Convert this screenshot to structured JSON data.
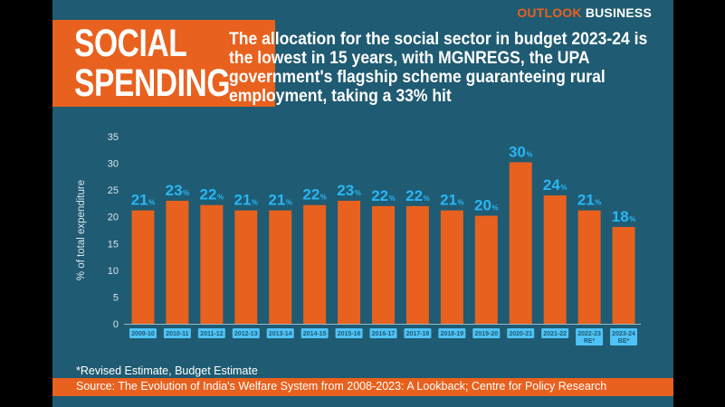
{
  "brand": {
    "first": "OUTLOOK",
    "second": "BUSINESS"
  },
  "title": {
    "line1": "SOCIAL",
    "line2": "SPENDING"
  },
  "headline": "The allocation for the social sector in budget 2023-24 is the lowest in 15 years, with MGNREGS, the UPA government's flagship scheme guaranteeing rural employment, taking a 33% hit",
  "footnote": "*Revised Estimate, Budget Estimate",
  "source": "Source: The Evolution of India's Welfare System from 2008-2023: A Lookback; Centre for Policy Research",
  "colors": {
    "bar": "#e8611e",
    "label": "#29b6f6",
    "background": "#1f5b72",
    "category_box": "#4fc3f7"
  },
  "chart_data": {
    "type": "bar",
    "ylabel": "% of total expenditure",
    "ylim": [
      0,
      35
    ],
    "yticks": [
      "0",
      "5",
      "10",
      "15",
      "20",
      "25",
      "30",
      "35"
    ],
    "grid": false,
    "categories": [
      [
        "2009-10"
      ],
      [
        "2010-11"
      ],
      [
        "2011-12"
      ],
      [
        "2012-13"
      ],
      [
        "2013-14"
      ],
      [
        "2014-15"
      ],
      [
        "2015-16"
      ],
      [
        "2016-17"
      ],
      [
        "2017-18"
      ],
      [
        "2018-19"
      ],
      [
        "2019-20"
      ],
      [
        "2020-21"
      ],
      [
        "2021-22"
      ],
      [
        "2022-23",
        "RE*"
      ],
      [
        "2023-24",
        "BE*"
      ]
    ],
    "values": [
      21.2,
      23.0,
      22.2,
      21.2,
      21.2,
      22.2,
      23.0,
      22.0,
      22.0,
      21.2,
      20.2,
      30.2,
      24.0,
      21.2,
      18.1
    ],
    "data_labels": [
      "21",
      "23",
      "22",
      "21",
      "21",
      "22",
      "23",
      "22",
      "22",
      "21",
      "20",
      "30",
      "24",
      "21",
      "18"
    ],
    "label_suffix": "%"
  }
}
